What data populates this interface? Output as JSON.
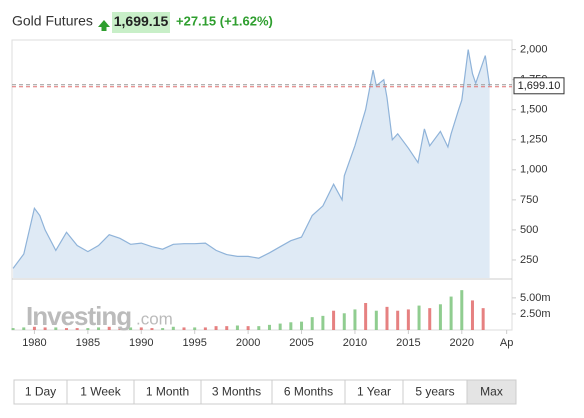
{
  "header": {
    "title": "Gold Futures",
    "price": "1,699.15",
    "change": "+27.15 (+1.62%)"
  },
  "watermark": {
    "brand": "Investing",
    "suffix": ".com"
  },
  "ranges": [
    "1 Day",
    "1 Week",
    "1 Month",
    "3 Months",
    "6 Months",
    "1 Year",
    "5 years",
    "Max"
  ],
  "selected_range": 7,
  "chart_data": [
    {
      "type": "line",
      "x": [
        1978,
        1979,
        1980,
        1980.5,
        1981,
        1982,
        1983,
        1984,
        1985,
        1986,
        1987,
        1988,
        1989,
        1990,
        1991,
        1992,
        1993,
        1994,
        1995,
        1996,
        1997,
        1998,
        1999,
        2000,
        2001,
        2002,
        2003,
        2004,
        2005,
        2006,
        2007,
        2008,
        2008.8,
        2009,
        2010,
        2011,
        2011.7,
        2012,
        2012.7,
        2013,
        2013.5,
        2014,
        2015,
        2015.9,
        2016.5,
        2017,
        2018,
        2018.7,
        2019,
        2019.7,
        2020,
        2020.6,
        2021,
        2021.3,
        2022.2,
        2022.6
      ],
      "series": [
        {
          "color": "#8fb3d9",
          "values": [
            180,
            300,
            680,
            620,
            500,
            330,
            480,
            370,
            320,
            370,
            460,
            430,
            380,
            390,
            360,
            340,
            380,
            385,
            385,
            390,
            330,
            295,
            280,
            280,
            265,
            310,
            360,
            410,
            440,
            620,
            700,
            880,
            750,
            950,
            1200,
            1500,
            1830,
            1700,
            1750,
            1600,
            1250,
            1300,
            1180,
            1060,
            1340,
            1200,
            1320,
            1190,
            1300,
            1500,
            1580,
            2000,
            1800,
            1720,
            1950,
            1699
          ]
        }
      ],
      "xlim": [
        1977.9,
        2024.7
      ],
      "ylim": [
        100,
        2080
      ],
      "yticks": [
        {
          "value": 250,
          "label": "250"
        },
        {
          "value": 500,
          "label": "500"
        },
        {
          "value": 750,
          "label": "750"
        },
        {
          "value": 1000,
          "label": "1,000"
        },
        {
          "value": 1250,
          "label": "1,250"
        },
        {
          "value": 1500,
          "label": "1,500"
        },
        {
          "value": 1750,
          "label": "1,750"
        },
        {
          "value": 2000,
          "label": "2,000"
        }
      ],
      "last_price": {
        "value": 1699.1,
        "label": "1,699.10"
      }
    },
    {
      "type": "bar",
      "x": [
        1978,
        1979,
        1980,
        1981,
        1982,
        1983,
        1984,
        1985,
        1986,
        1987,
        1988,
        1989,
        1990,
        1991,
        1992,
        1993,
        1994,
        1995,
        1996,
        1997,
        1998,
        1999,
        2000,
        2001,
        2002,
        2003,
        2004,
        2005,
        2006,
        2007,
        2008,
        2009,
        2010,
        2011,
        2012,
        2013,
        2014,
        2015,
        2016,
        2017,
        2018,
        2019,
        2020,
        2021,
        2022
      ],
      "values": [
        300000,
        400000,
        500000,
        400000,
        400000,
        300000,
        300000,
        300000,
        400000,
        500000,
        400000,
        400000,
        400000,
        300000,
        300000,
        500000,
        400000,
        400000,
        400000,
        600000,
        600000,
        700000,
        600000,
        600000,
        800000,
        1000000,
        1200000,
        1300000,
        2000000,
        2200000,
        3000000,
        2600000,
        3200000,
        4200000,
        3000000,
        3600000,
        3000000,
        3200000,
        3800000,
        3400000,
        4000000,
        5200000,
        6200000,
        4600000,
        3400000
      ],
      "colors": [
        "#7cc47c",
        "#7cc47c",
        "#e26b6b",
        "#e26b6b",
        "#7cc47c",
        "#e26b6b",
        "#e26b6b",
        "#7cc47c",
        "#7cc47c",
        "#e26b6b",
        "#e26b6b",
        "#7cc47c",
        "#e26b6b",
        "#e26b6b",
        "#7cc47c",
        "#7cc47c",
        "#e26b6b",
        "#7cc47c",
        "#e26b6b",
        "#e26b6b",
        "#e26b6b",
        "#7cc47c",
        "#e26b6b",
        "#7cc47c",
        "#7cc47c",
        "#7cc47c",
        "#7cc47c",
        "#7cc47c",
        "#7cc47c",
        "#7cc47c",
        "#e26b6b",
        "#7cc47c",
        "#7cc47c",
        "#e26b6b",
        "#7cc47c",
        "#e26b6b",
        "#e26b6b",
        "#e26b6b",
        "#7cc47c",
        "#e26b6b",
        "#7cc47c",
        "#7cc47c",
        "#7cc47c",
        "#e26b6b",
        "#e26b6b"
      ],
      "xlim": [
        1977.9,
        2024.7
      ],
      "ylim": [
        0,
        7000000
      ],
      "yticks": [
        {
          "value": 2500000,
          "label": "2.50m"
        },
        {
          "value": 5000000,
          "label": "5.00m"
        }
      ],
      "xticks": [
        1980,
        1985,
        1990,
        1995,
        2000,
        2005,
        2010,
        2015,
        2020,
        {
          "value": 2024.2,
          "label": "Ap"
        }
      ]
    }
  ]
}
